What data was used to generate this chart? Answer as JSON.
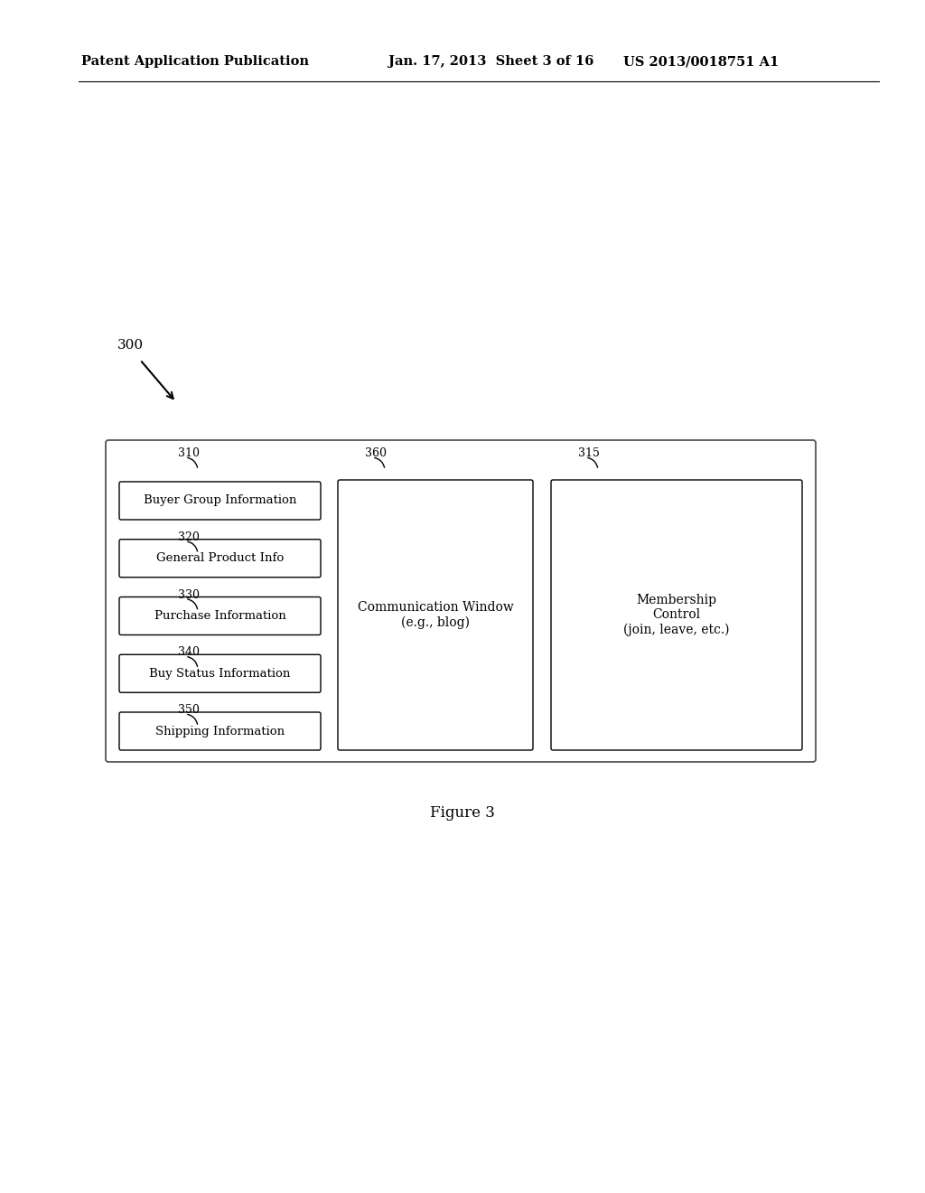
{
  "bg_color": "#ffffff",
  "header_left": "Patent Application Publication",
  "header_mid": "Jan. 17, 2013  Sheet 3 of 16",
  "header_right": "US 2013/0018751 A1",
  "figure_label": "Figure 3",
  "diagram_label": "300",
  "left_panel_label": "310",
  "mid_panel_label": "360",
  "right_panel_label": "315",
  "left_boxes": [
    "Buyer Group Information",
    "General Product Info",
    "Purchase Information",
    "Buy Status Information",
    "Shipping Information"
  ],
  "left_box_refs": [
    "",
    "320",
    "330",
    "340",
    "350"
  ],
  "mid_text": "Communication Window\n(e.g., blog)",
  "right_text": "Membership\nControl\n(join, leave, etc.)"
}
